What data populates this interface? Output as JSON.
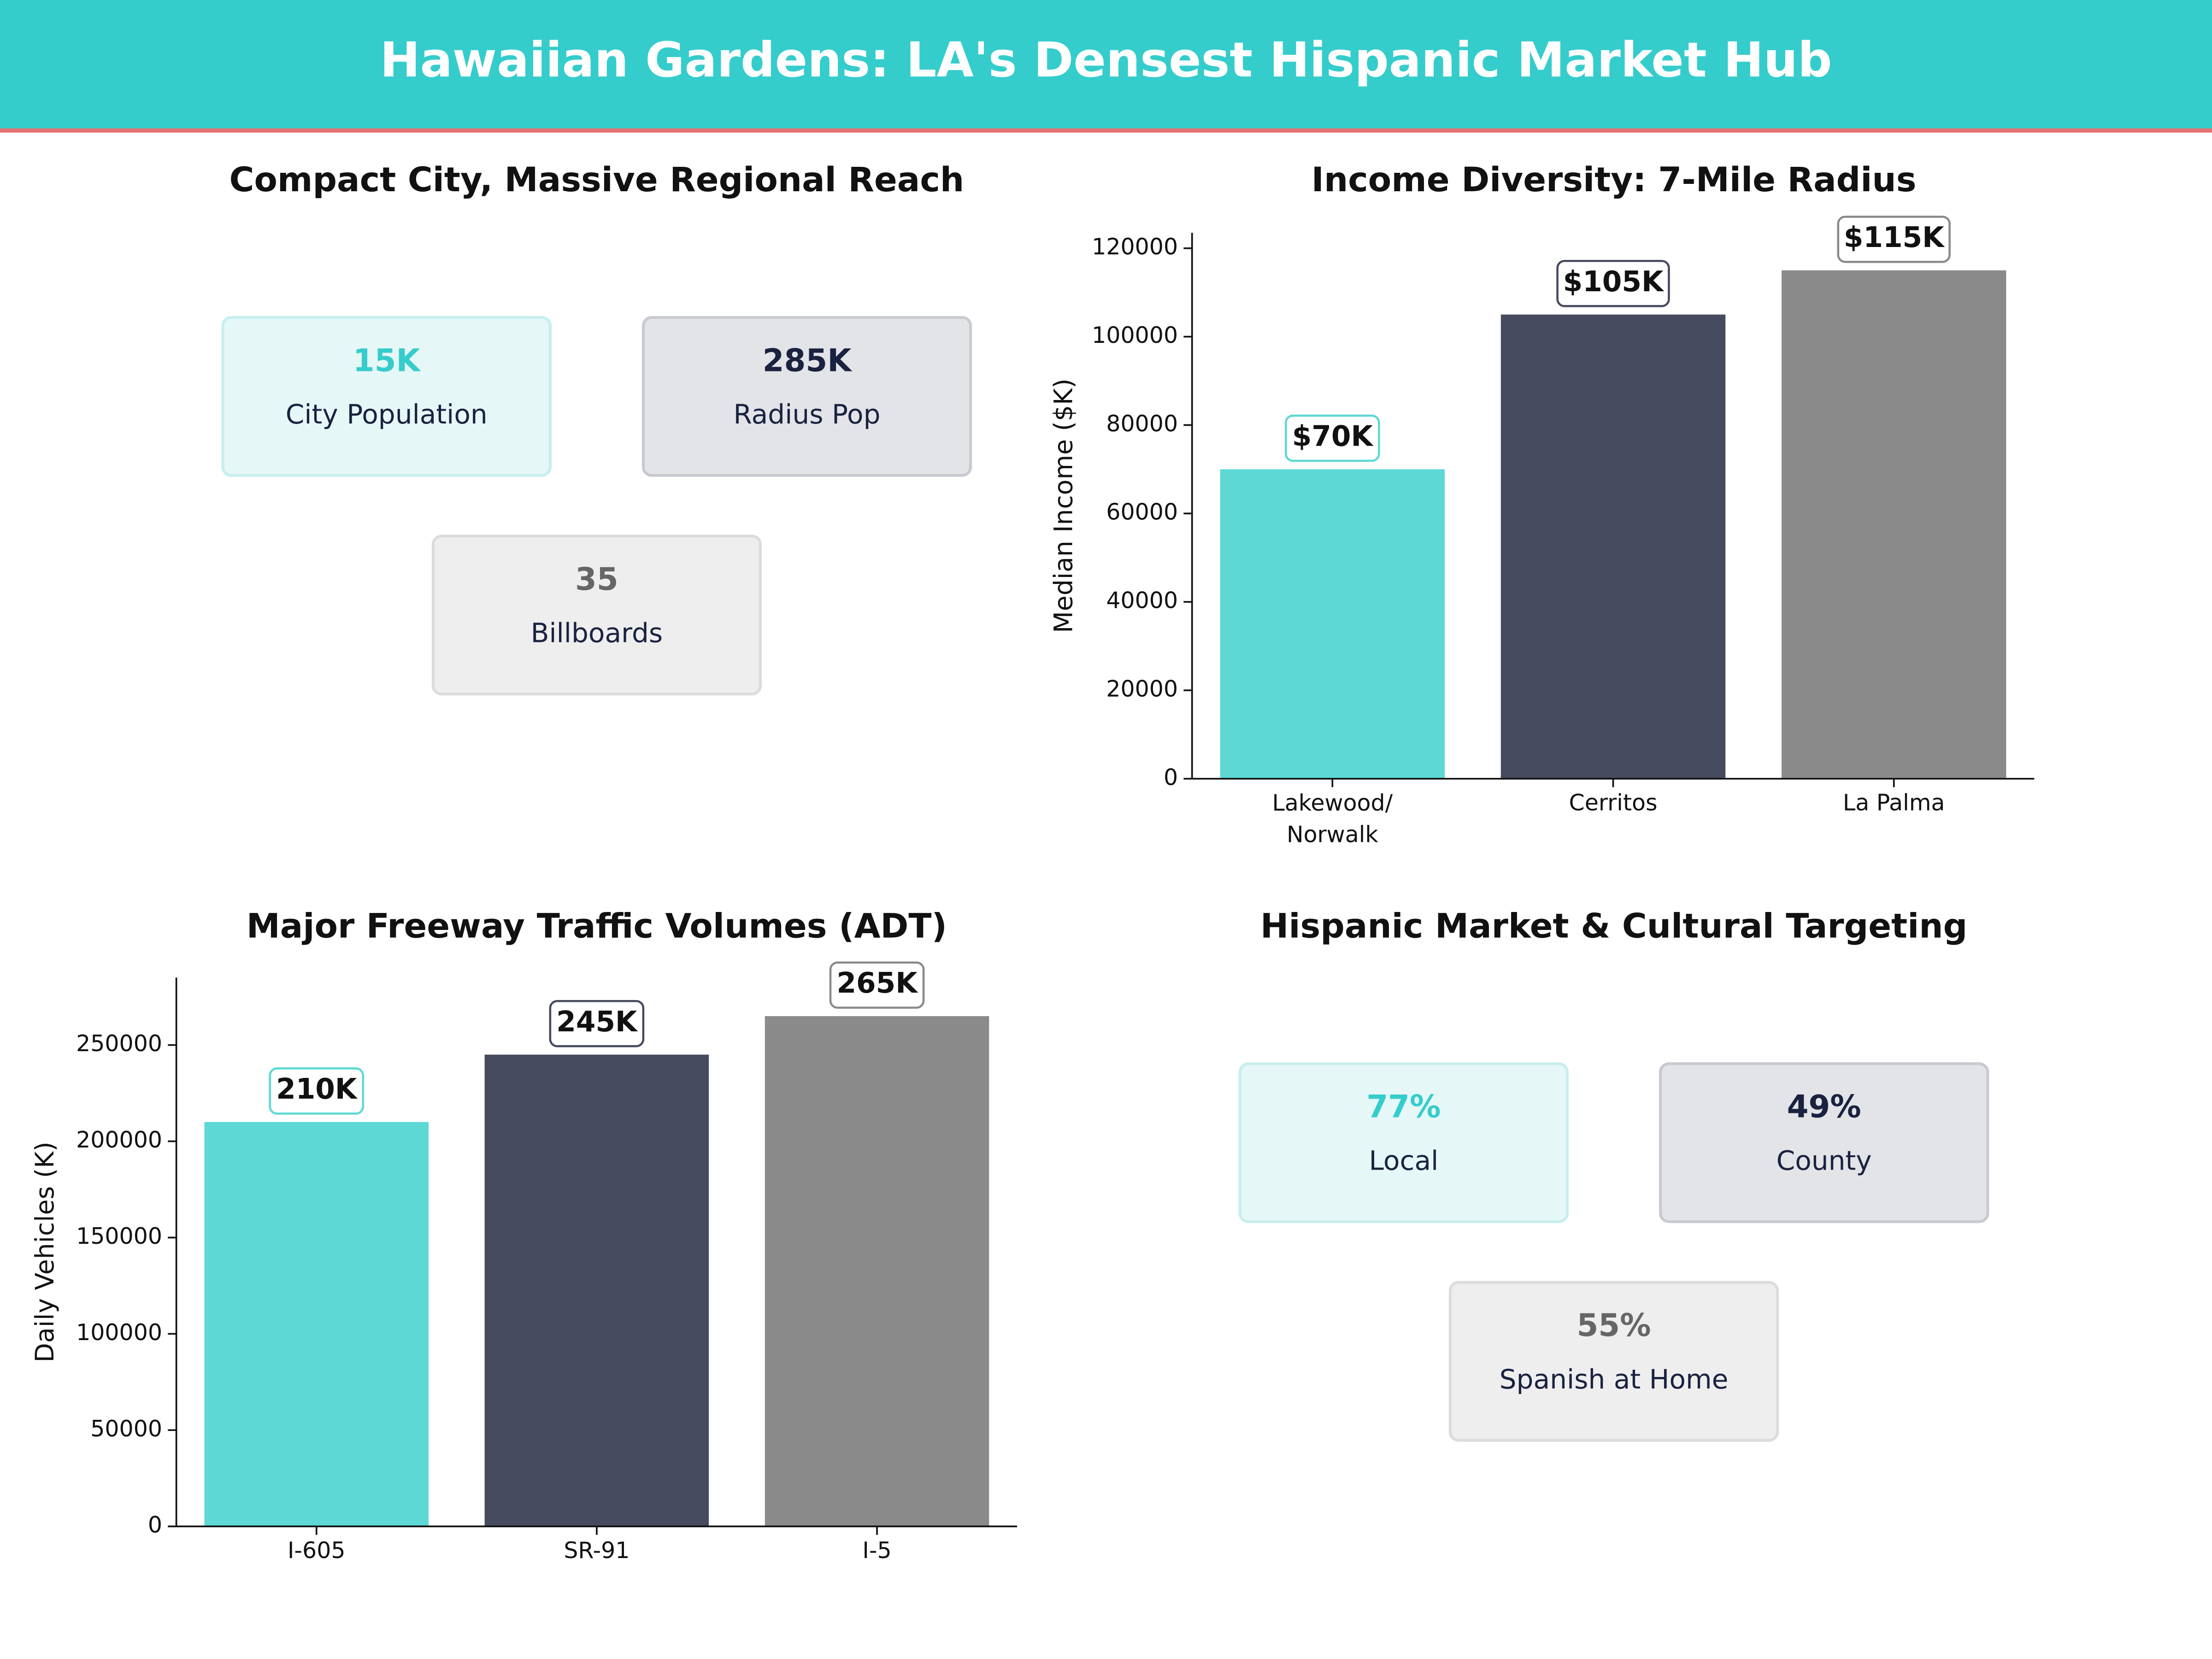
{
  "title": "Hawaiian Gardens: LA's Densest Hispanic Market Hub",
  "chart_data": [
    {
      "type": "kpi",
      "title": "Compact City, Massive Regional Reach",
      "items": [
        {
          "value": "15K",
          "label": "City Population"
        },
        {
          "value": "285K",
          "label": "Radius Pop"
        },
        {
          "value": "35",
          "label": "Billboards"
        }
      ]
    },
    {
      "type": "bar",
      "title": "Income Diversity: 7-Mile Radius",
      "ylabel": "Median Income ($K)",
      "categories": [
        "Lakewood/\nNorwalk",
        "Cerritos",
        "La Palma"
      ],
      "values": [
        70000,
        105000,
        115000
      ],
      "value_labels": [
        "$70K",
        "$105K",
        "$115K"
      ],
      "colors": [
        "#5dd8d5",
        "#454a5e",
        "#8a8a8a"
      ],
      "ylim": [
        0,
        123500
      ],
      "yticks": [
        0,
        20000,
        40000,
        60000,
        80000,
        100000,
        120000
      ]
    },
    {
      "type": "bar",
      "title": "Major Freeway Traffic Volumes (ADT)",
      "ylabel": "Daily Vehicles (K)",
      "categories": [
        "I-605",
        "SR-91",
        "I-5"
      ],
      "values": [
        210000,
        245000,
        265000
      ],
      "value_labels": [
        "210K",
        "245K",
        "265K"
      ],
      "colors": [
        "#5dd8d5",
        "#454a5e",
        "#8a8a8a"
      ],
      "ylim": [
        0,
        285000
      ],
      "yticks": [
        0,
        50000,
        100000,
        150000,
        200000,
        250000
      ]
    },
    {
      "type": "kpi",
      "title": "Hispanic Market & Cultural Targeting",
      "items": [
        {
          "value": "77%",
          "label": "Local"
        },
        {
          "value": "49%",
          "label": "County"
        },
        {
          "value": "55%",
          "label": "Spanish at Home"
        }
      ]
    }
  ]
}
